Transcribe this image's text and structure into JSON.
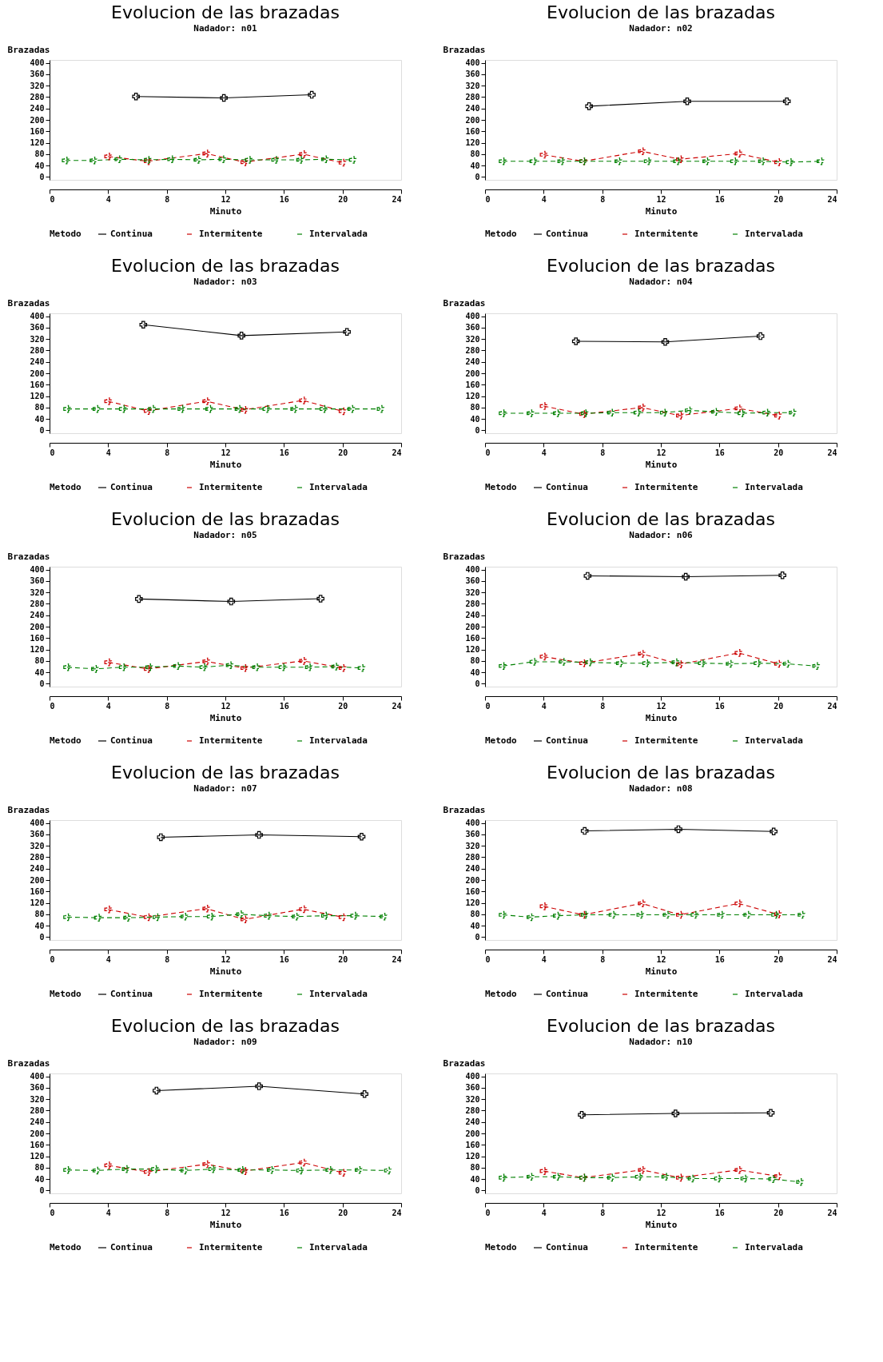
{
  "chart_data": [
    {
      "type": "line",
      "title": "Evolucion de las brazadas",
      "subtitle": "Nadador: n01",
      "xlabel": "Minuto",
      "ylabel": "Brazadas",
      "legend_title": "Metodo",
      "xlim": [
        0,
        24
      ],
      "ylim": [
        -10,
        410
      ],
      "xticks": [
        0,
        4,
        8,
        12,
        16,
        20,
        24
      ],
      "yticks": [
        0,
        40,
        80,
        120,
        160,
        200,
        240,
        280,
        320,
        360,
        400
      ],
      "grid": false,
      "legend": "bottom",
      "marker": "cross",
      "series": [
        {
          "name": "Continua",
          "color": "#000000",
          "line_style": "solid",
          "x": [
            5.9,
            11.9,
            17.9
          ],
          "values": [
            282,
            277,
            288
          ]
        },
        {
          "name": "Intermitente",
          "color": "#cc0000",
          "line_style": "dashed",
          "x": [
            4,
            6.7,
            10.7,
            13.3,
            17.3,
            20
          ],
          "values": [
            72,
            55,
            82,
            52,
            80,
            50
          ]
        },
        {
          "name": "Intervalada",
          "color": "#008000",
          "line_style": "dashed",
          "x": [
            1.1,
            3.0,
            4.7,
            6.7,
            8.3,
            10.1,
            11.8,
            13.6,
            15.4,
            17.1,
            18.8,
            20.7
          ],
          "values": [
            58,
            58,
            62,
            60,
            62,
            60,
            62,
            60,
            60,
            60,
            62,
            60
          ]
        }
      ]
    },
    {
      "type": "line",
      "title": "Evolucion de las brazadas",
      "subtitle": "Nadador: n02",
      "xlabel": "Minuto",
      "ylabel": "Brazadas",
      "legend_title": "Metodo",
      "xlim": [
        0,
        24
      ],
      "ylim": [
        -10,
        410
      ],
      "xticks": [
        0,
        4,
        8,
        12,
        16,
        20,
        24
      ],
      "yticks": [
        0,
        40,
        80,
        120,
        160,
        200,
        240,
        280,
        320,
        360,
        400
      ],
      "grid": false,
      "legend": "bottom",
      "marker": "cross",
      "series": [
        {
          "name": "Continua",
          "color": "#000000",
          "line_style": "solid",
          "x": [
            7.1,
            13.8,
            20.6
          ],
          "values": [
            248,
            265,
            265
          ]
        },
        {
          "name": "Intermitente",
          "color": "#cc0000",
          "line_style": "dashed",
          "x": [
            4,
            6.7,
            10.7,
            13.3,
            17.3,
            20
          ],
          "values": [
            78,
            55,
            90,
            62,
            82,
            52
          ]
        },
        {
          "name": "Intervalada",
          "color": "#008000",
          "line_style": "dashed",
          "x": [
            1.2,
            3.3,
            5.2,
            6.7,
            9.1,
            11.1,
            13.1,
            15.1,
            17.0,
            18.9,
            20.8,
            22.9
          ],
          "values": [
            55,
            55,
            55,
            55,
            55,
            55,
            55,
            55,
            55,
            55,
            52,
            55
          ]
        }
      ]
    },
    {
      "type": "line",
      "title": "Evolucion de las brazadas",
      "subtitle": "Nadador: n03",
      "xlabel": "Minuto",
      "ylabel": "Brazadas",
      "legend_title": "Metodo",
      "xlim": [
        0,
        24
      ],
      "ylim": [
        -10,
        410
      ],
      "xticks": [
        0,
        4,
        8,
        12,
        16,
        20,
        24
      ],
      "yticks": [
        0,
        40,
        80,
        120,
        160,
        200,
        240,
        280,
        320,
        360,
        400
      ],
      "grid": false,
      "legend": "bottom",
      "marker": "cross",
      "series": [
        {
          "name": "Continua",
          "color": "#000000",
          "line_style": "solid",
          "x": [
            6.4,
            13.1,
            20.3
          ],
          "values": [
            370,
            332,
            345
          ]
        },
        {
          "name": "Intermitente",
          "color": "#cc0000",
          "line_style": "dashed",
          "x": [
            4,
            6.7,
            10.7,
            13.3,
            17.3,
            20
          ],
          "values": [
            102,
            68,
            102,
            72,
            105,
            67
          ]
        },
        {
          "name": "Intervalada",
          "color": "#008000",
          "line_style": "dashed",
          "x": [
            1.2,
            3.2,
            5.0,
            7.0,
            9.0,
            10.9,
            12.9,
            14.8,
            16.7,
            18.7,
            20.6,
            22.6
          ],
          "values": [
            75,
            75,
            75,
            75,
            75,
            75,
            75,
            75,
            75,
            75,
            75,
            75
          ]
        }
      ]
    },
    {
      "type": "line",
      "title": "Evolucion de las brazadas",
      "subtitle": "Nadador: n04",
      "xlabel": "Minuto",
      "ylabel": "Brazadas",
      "legend_title": "Metodo",
      "xlim": [
        0,
        24
      ],
      "ylim": [
        -10,
        410
      ],
      "xticks": [
        0,
        4,
        8,
        12,
        16,
        20,
        24
      ],
      "yticks": [
        0,
        40,
        80,
        120,
        160,
        200,
        240,
        280,
        320,
        360,
        400
      ],
      "grid": false,
      "legend": "bottom",
      "marker": "cross",
      "series": [
        {
          "name": "Continua",
          "color": "#000000",
          "line_style": "solid",
          "x": [
            6.2,
            12.3,
            18.8
          ],
          "values": [
            312,
            310,
            330
          ]
        },
        {
          "name": "Intermitente",
          "color": "#cc0000",
          "line_style": "dashed",
          "x": [
            4,
            6.7,
            10.7,
            13.3,
            17.3,
            20
          ],
          "values": [
            85,
            57,
            80,
            52,
            77,
            52
          ]
        },
        {
          "name": "Intervalada",
          "color": "#008000",
          "line_style": "dashed",
          "x": [
            1.2,
            3.1,
            4.9,
            6.8,
            8.6,
            10.4,
            12.2,
            13.9,
            15.7,
            17.5,
            19.2,
            21.0
          ],
          "values": [
            60,
            60,
            60,
            60,
            62,
            62,
            62,
            70,
            65,
            60,
            62,
            62
          ]
        }
      ]
    },
    {
      "type": "line",
      "title": "Evolucion de las brazadas",
      "subtitle": "Nadador: n05",
      "xlabel": "Minuto",
      "ylabel": "Brazadas",
      "legend_title": "Metodo",
      "xlim": [
        0,
        24
      ],
      "ylim": [
        -10,
        410
      ],
      "xticks": [
        0,
        4,
        8,
        12,
        16,
        20,
        24
      ],
      "yticks": [
        0,
        40,
        80,
        120,
        160,
        200,
        240,
        280,
        320,
        360,
        400
      ],
      "grid": false,
      "legend": "bottom",
      "marker": "cross",
      "series": [
        {
          "name": "Continua",
          "color": "#000000",
          "line_style": "solid",
          "x": [
            6.1,
            12.4,
            18.5
          ],
          "values": [
            297,
            288,
            298
          ]
        },
        {
          "name": "Intermitente",
          "color": "#cc0000",
          "line_style": "dashed",
          "x": [
            4,
            6.7,
            10.7,
            13.3,
            17.3,
            20
          ],
          "values": [
            75,
            52,
            78,
            55,
            80,
            55
          ]
        },
        {
          "name": "Intervalada",
          "color": "#008000",
          "line_style": "dashed",
          "x": [
            1.2,
            3.1,
            5.0,
            6.8,
            8.7,
            10.5,
            12.3,
            14.1,
            15.9,
            17.7,
            19.5,
            21.3
          ],
          "values": [
            58,
            52,
            58,
            58,
            62,
            58,
            65,
            58,
            58,
            58,
            60,
            55
          ]
        }
      ]
    },
    {
      "type": "line",
      "title": "Evolucion de las brazadas",
      "subtitle": "Nadador: n06",
      "xlabel": "Minuto",
      "ylabel": "Brazadas",
      "legend_title": "Metodo",
      "xlim": [
        0,
        24
      ],
      "ylim": [
        -10,
        410
      ],
      "xticks": [
        0,
        4,
        8,
        12,
        16,
        20,
        24
      ],
      "yticks": [
        0,
        40,
        80,
        120,
        160,
        200,
        240,
        280,
        320,
        360,
        400
      ],
      "grid": false,
      "legend": "bottom",
      "marker": "cross",
      "series": [
        {
          "name": "Continua",
          "color": "#000000",
          "line_style": "solid",
          "x": [
            7.0,
            13.7,
            20.3
          ],
          "values": [
            378,
            375,
            380
          ]
        },
        {
          "name": "Intermitente",
          "color": "#cc0000",
          "line_style": "dashed",
          "x": [
            4,
            6.7,
            10.7,
            13.3,
            17.3,
            20
          ],
          "values": [
            95,
            72,
            105,
            68,
            108,
            70
          ]
        },
        {
          "name": "Intervalada",
          "color": "#008000",
          "line_style": "dashed",
          "x": [
            1.2,
            3.3,
            5.3,
            7.1,
            9.2,
            11.0,
            13.0,
            14.8,
            16.7,
            18.6,
            20.6,
            22.6
          ],
          "values": [
            62,
            77,
            77,
            75,
            72,
            72,
            75,
            72,
            70,
            72,
            70,
            62
          ]
        }
      ]
    },
    {
      "type": "line",
      "title": "Evolucion de las brazadas",
      "subtitle": "Nadador: n07",
      "xlabel": "Minuto",
      "ylabel": "Brazadas",
      "legend_title": "Metodo",
      "xlim": [
        0,
        24
      ],
      "ylim": [
        -10,
        410
      ],
      "xticks": [
        0,
        4,
        8,
        12,
        16,
        20,
        24
      ],
      "yticks": [
        0,
        40,
        80,
        120,
        160,
        200,
        240,
        280,
        320,
        360,
        400
      ],
      "grid": false,
      "legend": "bottom",
      "marker": "cross",
      "series": [
        {
          "name": "Continua",
          "color": "#000000",
          "line_style": "solid",
          "x": [
            7.6,
            14.3,
            21.3
          ],
          "values": [
            350,
            358,
            352
          ]
        },
        {
          "name": "Intermitente",
          "color": "#cc0000",
          "line_style": "dashed",
          "x": [
            4,
            6.7,
            10.7,
            13.3,
            17.3,
            20
          ],
          "values": [
            97,
            70,
            100,
            62,
            98,
            70
          ]
        },
        {
          "name": "Intervalada",
          "color": "#008000",
          "line_style": "dashed",
          "x": [
            1.2,
            3.3,
            5.3,
            7.3,
            9.2,
            11.0,
            13.0,
            14.9,
            16.8,
            18.8,
            20.8,
            22.8
          ],
          "values": [
            70,
            68,
            68,
            70,
            72,
            72,
            80,
            75,
            72,
            75,
            75,
            72
          ]
        }
      ]
    },
    {
      "type": "line",
      "title": "Evolucion de las brazadas",
      "subtitle": "Nadador: n08",
      "xlabel": "Minuto",
      "ylabel": "Brazadas",
      "legend_title": "Metodo",
      "xlim": [
        0,
        24
      ],
      "ylim": [
        -10,
        410
      ],
      "xticks": [
        0,
        4,
        8,
        12,
        16,
        20,
        24
      ],
      "yticks": [
        0,
        40,
        80,
        120,
        160,
        200,
        240,
        280,
        320,
        360,
        400
      ],
      "grid": false,
      "legend": "bottom",
      "marker": "cross",
      "series": [
        {
          "name": "Continua",
          "color": "#000000",
          "line_style": "solid",
          "x": [
            6.8,
            13.2,
            19.7
          ],
          "values": [
            372,
            378,
            370
          ]
        },
        {
          "name": "Intermitente",
          "color": "#cc0000",
          "line_style": "dashed",
          "x": [
            4,
            6.7,
            10.7,
            13.3,
            17.3,
            20
          ],
          "values": [
            108,
            78,
            118,
            78,
            118,
            80
          ]
        },
        {
          "name": "Intervalada",
          "color": "#008000",
          "line_style": "dashed",
          "x": [
            1.2,
            3.1,
            4.9,
            6.8,
            8.7,
            10.6,
            12.4,
            14.3,
            16.1,
            17.9,
            19.8,
            21.6
          ],
          "values": [
            78,
            70,
            75,
            78,
            78,
            78,
            78,
            78,
            78,
            78,
            78,
            78
          ]
        }
      ]
    },
    {
      "type": "line",
      "title": "Evolucion de las brazadas",
      "subtitle": "Nadador: n09",
      "xlabel": "Minuto",
      "ylabel": "Brazadas",
      "legend_title": "Metodo",
      "xlim": [
        0,
        24
      ],
      "ylim": [
        -10,
        410
      ],
      "xticks": [
        0,
        4,
        8,
        12,
        16,
        20,
        24
      ],
      "yticks": [
        0,
        40,
        80,
        120,
        160,
        200,
        240,
        280,
        320,
        360,
        400
      ],
      "grid": false,
      "legend": "bottom",
      "marker": "cross",
      "series": [
        {
          "name": "Continua",
          "color": "#000000",
          "line_style": "solid",
          "x": [
            7.3,
            14.3,
            21.5
          ],
          "values": [
            350,
            365,
            338
          ]
        },
        {
          "name": "Intermitente",
          "color": "#cc0000",
          "line_style": "dashed",
          "x": [
            4,
            6.7,
            10.7,
            13.3,
            17.3,
            20
          ],
          "values": [
            88,
            65,
            92,
            68,
            98,
            62
          ]
        },
        {
          "name": "Intervalada",
          "color": "#008000",
          "line_style": "dashed",
          "x": [
            1.2,
            3.2,
            5.2,
            7.2,
            9.2,
            11.1,
            13.1,
            15.1,
            17.1,
            19.1,
            21.1,
            23.1
          ],
          "values": [
            72,
            70,
            75,
            75,
            70,
            75,
            72,
            72,
            70,
            72,
            72,
            70
          ]
        }
      ]
    },
    {
      "type": "line",
      "title": "Evolucion de las brazadas",
      "subtitle": "Nadador: n10",
      "xlabel": "Minuto",
      "ylabel": "Brazadas",
      "legend_title": "Metodo",
      "xlim": [
        0,
        24
      ],
      "ylim": [
        -10,
        410
      ],
      "xticks": [
        0,
        4,
        8,
        12,
        16,
        20,
        24
      ],
      "yticks": [
        0,
        40,
        80,
        120,
        160,
        200,
        240,
        280,
        320,
        360,
        400
      ],
      "grid": false,
      "legend": "bottom",
      "marker": "cross",
      "series": [
        {
          "name": "Continua",
          "color": "#000000",
          "line_style": "solid",
          "x": [
            6.6,
            13.0,
            19.5
          ],
          "values": [
            265,
            270,
            272
          ]
        },
        {
          "name": "Intermitente",
          "color": "#cc0000",
          "line_style": "dashed",
          "x": [
            4,
            6.7,
            10.7,
            13.3,
            17.3,
            20
          ],
          "values": [
            68,
            45,
            72,
            45,
            72,
            50
          ]
        },
        {
          "name": "Intervalada",
          "color": "#008000",
          "line_style": "dashed",
          "x": [
            1.2,
            3.1,
            4.9,
            6.7,
            8.6,
            10.5,
            12.3,
            14.1,
            15.9,
            17.7,
            19.6,
            21.5
          ],
          "values": [
            45,
            48,
            48,
            45,
            45,
            48,
            48,
            42,
            42,
            42,
            40,
            30
          ]
        }
      ]
    }
  ]
}
